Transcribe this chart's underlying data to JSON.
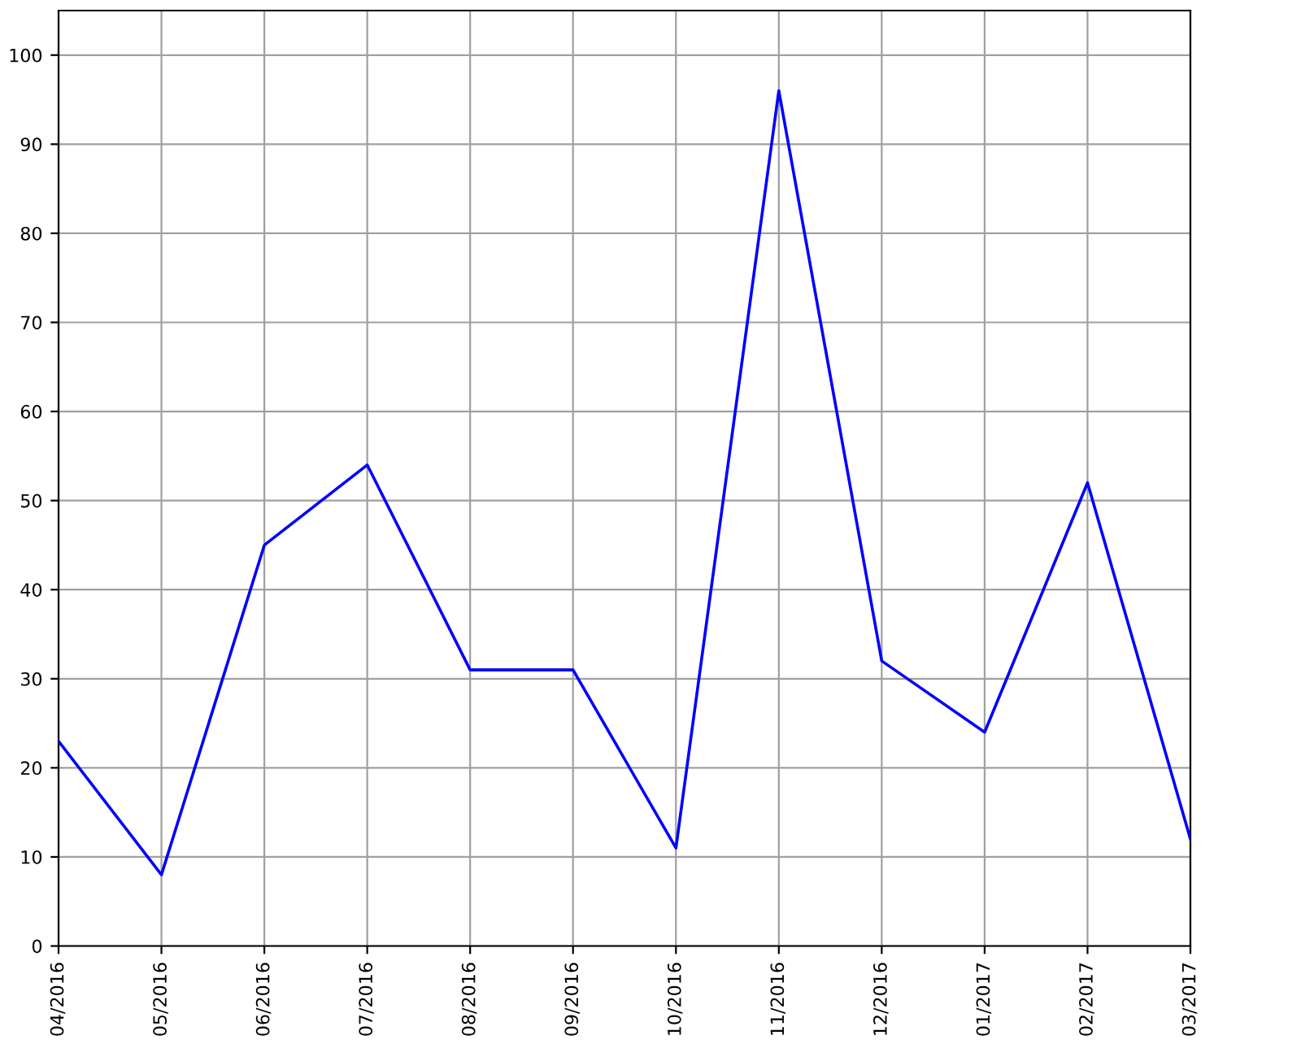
{
  "chart_data": {
    "type": "line",
    "categories": [
      "04/2016",
      "05/2016",
      "06/2016",
      "07/2016",
      "08/2016",
      "09/2016",
      "10/2016",
      "11/2016",
      "12/2016",
      "01/2017",
      "02/2017",
      "03/2017"
    ],
    "series": [
      {
        "color": "#0000ff",
        "values": [
          23,
          8,
          45,
          54,
          31,
          31,
          11,
          96,
          32,
          24,
          52,
          12
        ]
      }
    ],
    "ylim": [
      0,
      105
    ],
    "yticks": [
      0,
      10,
      20,
      30,
      40,
      50,
      60,
      70,
      80,
      90,
      100
    ],
    "grid": true,
    "marker": "none",
    "line_style": "solid"
  }
}
